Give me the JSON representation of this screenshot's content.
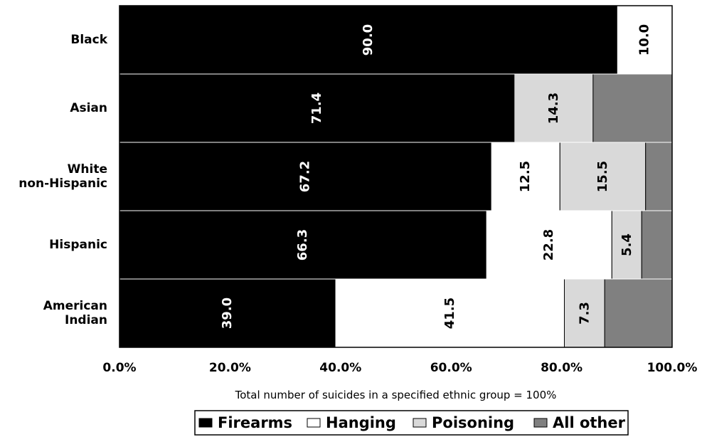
{
  "chart_data": {
    "type": "bar",
    "orientation": "horizontal",
    "stacked": true,
    "percent_stacked": true,
    "categories": [
      "Black",
      "Asian",
      "White non-Hispanic",
      "Hispanic",
      "American Indian"
    ],
    "category_lines": [
      [
        "Black"
      ],
      [
        "Asian"
      ],
      [
        "White",
        "non-Hispanic"
      ],
      [
        "Hispanic"
      ],
      [
        "American",
        "Indian"
      ]
    ],
    "series": [
      {
        "name": "Firearms",
        "color": "#000000",
        "values": [
          90.0,
          71.4,
          67.2,
          66.3,
          39.0
        ],
        "labels": [
          "90.0",
          "71.4",
          "67.2",
          "66.3",
          "39.0"
        ],
        "label_color": "#ffffff"
      },
      {
        "name": "Hanging",
        "color": "#ffffff",
        "values": [
          10.0,
          0,
          12.5,
          22.8,
          41.5
        ],
        "labels": [
          "10.0",
          "",
          "12.5",
          "22.8",
          "41.5"
        ],
        "label_color": "#000000"
      },
      {
        "name": "Poisoning",
        "color": "#d9d9d9",
        "values": [
          0,
          14.3,
          15.5,
          5.4,
          7.3
        ],
        "labels": [
          "",
          "14.3",
          "15.5",
          "5.4",
          "7.3"
        ],
        "label_color": "#000000"
      },
      {
        "name": "All other",
        "color": "#808080",
        "values": [
          0,
          14.3,
          4.8,
          5.5,
          12.2
        ],
        "labels": [
          "",
          "",
          "",
          "",
          ""
        ],
        "label_color": "#000000"
      }
    ],
    "x_ticks": [
      "0.0%",
      "20.0%",
      "40.0%",
      "60.0%",
      "80.0%",
      "100.0%"
    ],
    "xlim": [
      0,
      100
    ],
    "xlabel": "Total number of  suicides in a specified ethnic group = 100%",
    "ylabel": "",
    "title": "",
    "legend_position": "bottom",
    "grid": false
  }
}
